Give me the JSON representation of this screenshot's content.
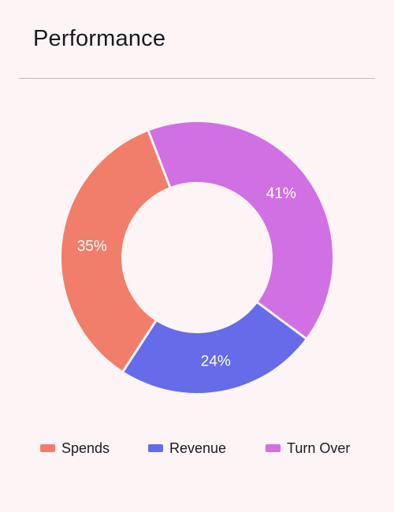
{
  "header": {
    "title": "Performance"
  },
  "colors": {
    "background": "#fcf4f5",
    "divider": "#c9b6b8"
  },
  "chart_data": {
    "type": "pie",
    "variant": "donut",
    "title": "Performance",
    "legend_position": "bottom",
    "categories": [
      "Spends",
      "Revenue",
      "Turn Over"
    ],
    "values": [
      35,
      24,
      41
    ],
    "labels": [
      "35%",
      "24%",
      "41%"
    ],
    "colors": [
      "#f07e6a",
      "#666bea",
      "#d070e3"
    ]
  }
}
